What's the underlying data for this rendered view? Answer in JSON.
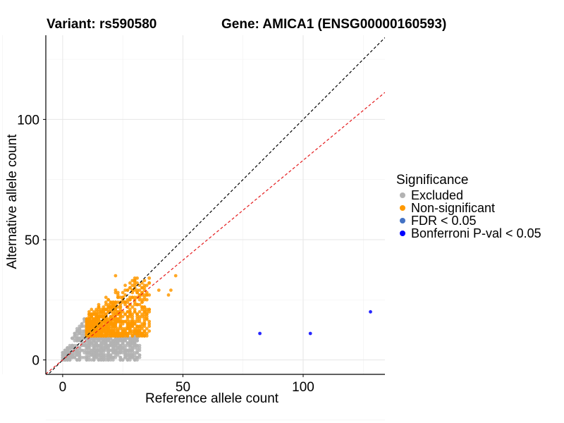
{
  "header": {
    "variant": "Variant: rs590580",
    "gene": "Gene: AMICA1 (ENSG00000160593)"
  },
  "chart_data": {
    "type": "scatter",
    "xlabel": "Reference allele count",
    "ylabel": "Alternative allele count",
    "xlim": [
      -7,
      134
    ],
    "ylim": [
      -6,
      135
    ],
    "x_ticks": [
      "0",
      "50",
      "100"
    ],
    "y_ticks": [
      "0",
      "50",
      "100"
    ],
    "x_tick_values": [
      0,
      50,
      100
    ],
    "y_tick_values": [
      0,
      50,
      100
    ],
    "grid": true,
    "legend_position": "right",
    "legend": {
      "title": "Significance",
      "items": [
        {
          "label": "Excluded",
          "color": "#b3b3b3"
        },
        {
          "label": "Non-significant",
          "color": "#ff9900"
        },
        {
          "label": "FDR < 0.05",
          "color": "#4472c4"
        },
        {
          "label": "Bonferroni P-val < 0.05",
          "color": "#0000ff"
        }
      ]
    },
    "reference_lines": [
      {
        "name": "y = x",
        "slope": 1,
        "intercept": 0,
        "color": "#000000",
        "style": "dashed"
      },
      {
        "name": "fit",
        "slope": 0.83,
        "intercept": 0,
        "color": "#e41a1c",
        "style": "dashed"
      }
    ],
    "series": [
      {
        "name": "Bonferroni P-val < 0.05",
        "color": "#0000ff",
        "points": [
          [
            82,
            11
          ],
          [
            103,
            11
          ],
          [
            128,
            20
          ]
        ]
      },
      {
        "name": "Excluded",
        "color": "#b3b3b3",
        "cluster_summary": {
          "x_range": [
            0,
            32
          ],
          "y_range": [
            0,
            20
          ]
        },
        "points": [
          [
            32,
            10
          ],
          [
            30,
            10
          ],
          [
            0,
            0
          ],
          [
            1,
            0
          ],
          [
            2,
            2
          ],
          [
            5,
            3
          ]
        ]
      },
      {
        "name": "Non-significant",
        "color": "#ff9900",
        "cluster_summary": {
          "x_range": [
            10,
            47
          ],
          "y_range": [
            10,
            35
          ]
        },
        "points": [
          [
            47,
            35
          ],
          [
            45,
            29
          ],
          [
            44,
            27
          ],
          [
            40,
            29
          ],
          [
            35,
            28
          ],
          [
            30,
            32
          ],
          [
            22,
            35
          ],
          [
            32,
            20
          ],
          [
            34,
            22
          ],
          [
            28,
            26
          ]
        ]
      }
    ]
  }
}
